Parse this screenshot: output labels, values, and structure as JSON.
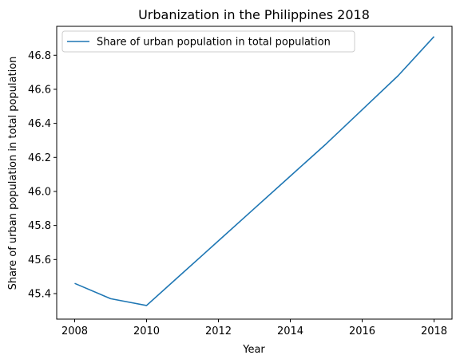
{
  "chart_data": {
    "type": "line",
    "title": "Urbanization in the Philippines 2018",
    "xlabel": "Year",
    "ylabel": "Share of urban population in total population",
    "x": [
      2008,
      2009,
      2010,
      2011,
      2012,
      2013,
      2014,
      2015,
      2016,
      2017,
      2018
    ],
    "series": [
      {
        "name": "Share of urban population in total population",
        "color": "#1f77b4",
        "values": [
          45.46,
          45.37,
          45.33,
          45.52,
          45.71,
          45.9,
          46.09,
          46.28,
          46.48,
          46.68,
          46.91
        ]
      }
    ],
    "xlim": [
      2007.5,
      2018.5
    ],
    "ylim": [
      45.25,
      46.97
    ],
    "x_ticks": [
      2008,
      2010,
      2012,
      2014,
      2016,
      2018
    ],
    "y_ticks": [
      45.4,
      45.6,
      45.8,
      46.0,
      46.2,
      46.4,
      46.6,
      46.8
    ],
    "y_tick_labels": [
      "45.4",
      "45.6",
      "45.8",
      "46.0",
      "46.2",
      "46.4",
      "46.6",
      "46.8"
    ],
    "grid": false,
    "legend_position": "top-left"
  }
}
